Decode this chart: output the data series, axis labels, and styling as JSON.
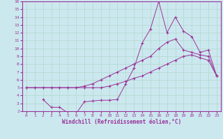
{
  "background_color": "#cce8ef",
  "line_color": "#993399",
  "grid_color": "#b0d8cc",
  "xlim": [
    -0.5,
    23.5
  ],
  "ylim": [
    2,
    16
  ],
  "yticks": [
    2,
    3,
    4,
    5,
    6,
    7,
    8,
    9,
    10,
    11,
    12,
    13,
    14,
    15,
    16
  ],
  "xticks": [
    0,
    1,
    2,
    3,
    4,
    5,
    6,
    7,
    8,
    9,
    10,
    11,
    12,
    13,
    14,
    15,
    16,
    17,
    18,
    19,
    20,
    21,
    22,
    23
  ],
  "xlabel": "Windchill (Refroidissement éolien,°C)",
  "line1_x": [
    0,
    1,
    2,
    3,
    4,
    5,
    6,
    7,
    8,
    9,
    10,
    11,
    12,
    13,
    14,
    15,
    16,
    17,
    18,
    19,
    20,
    21,
    22,
    23
  ],
  "line1_y": [
    5,
    5,
    5,
    5,
    5,
    5,
    5,
    5,
    5,
    5,
    5.2,
    5.5,
    5.8,
    6.2,
    6.5,
    7.0,
    7.5,
    8.0,
    8.5,
    9.0,
    9.2,
    8.8,
    8.5,
    6.5
  ],
  "line2_x": [
    0,
    1,
    2,
    3,
    4,
    5,
    6,
    7,
    8,
    9,
    10,
    11,
    12,
    13,
    14,
    15,
    16,
    17,
    18,
    19,
    20,
    21,
    22,
    23
  ],
  "line2_y": [
    5,
    5,
    5,
    5,
    5,
    5,
    5,
    5.2,
    5.5,
    6.0,
    6.5,
    7.0,
    7.5,
    8.0,
    8.5,
    9.0,
    10.0,
    10.8,
    11.2,
    9.8,
    9.5,
    9.2,
    9.0,
    6.5
  ],
  "line3_x": [
    2,
    3,
    4,
    5,
    6,
    7,
    8,
    9,
    10,
    11,
    12,
    13,
    14,
    15,
    16,
    17,
    18,
    19,
    20,
    21,
    22,
    23
  ],
  "line3_y": [
    3.5,
    2.5,
    2.5,
    1.8,
    1.7,
    3.2,
    3.3,
    3.4,
    3.4,
    3.5,
    5.5,
    7.5,
    10.7,
    12.5,
    16.0,
    12.0,
    14.0,
    12.2,
    11.5,
    9.5,
    9.8,
    6.5
  ]
}
